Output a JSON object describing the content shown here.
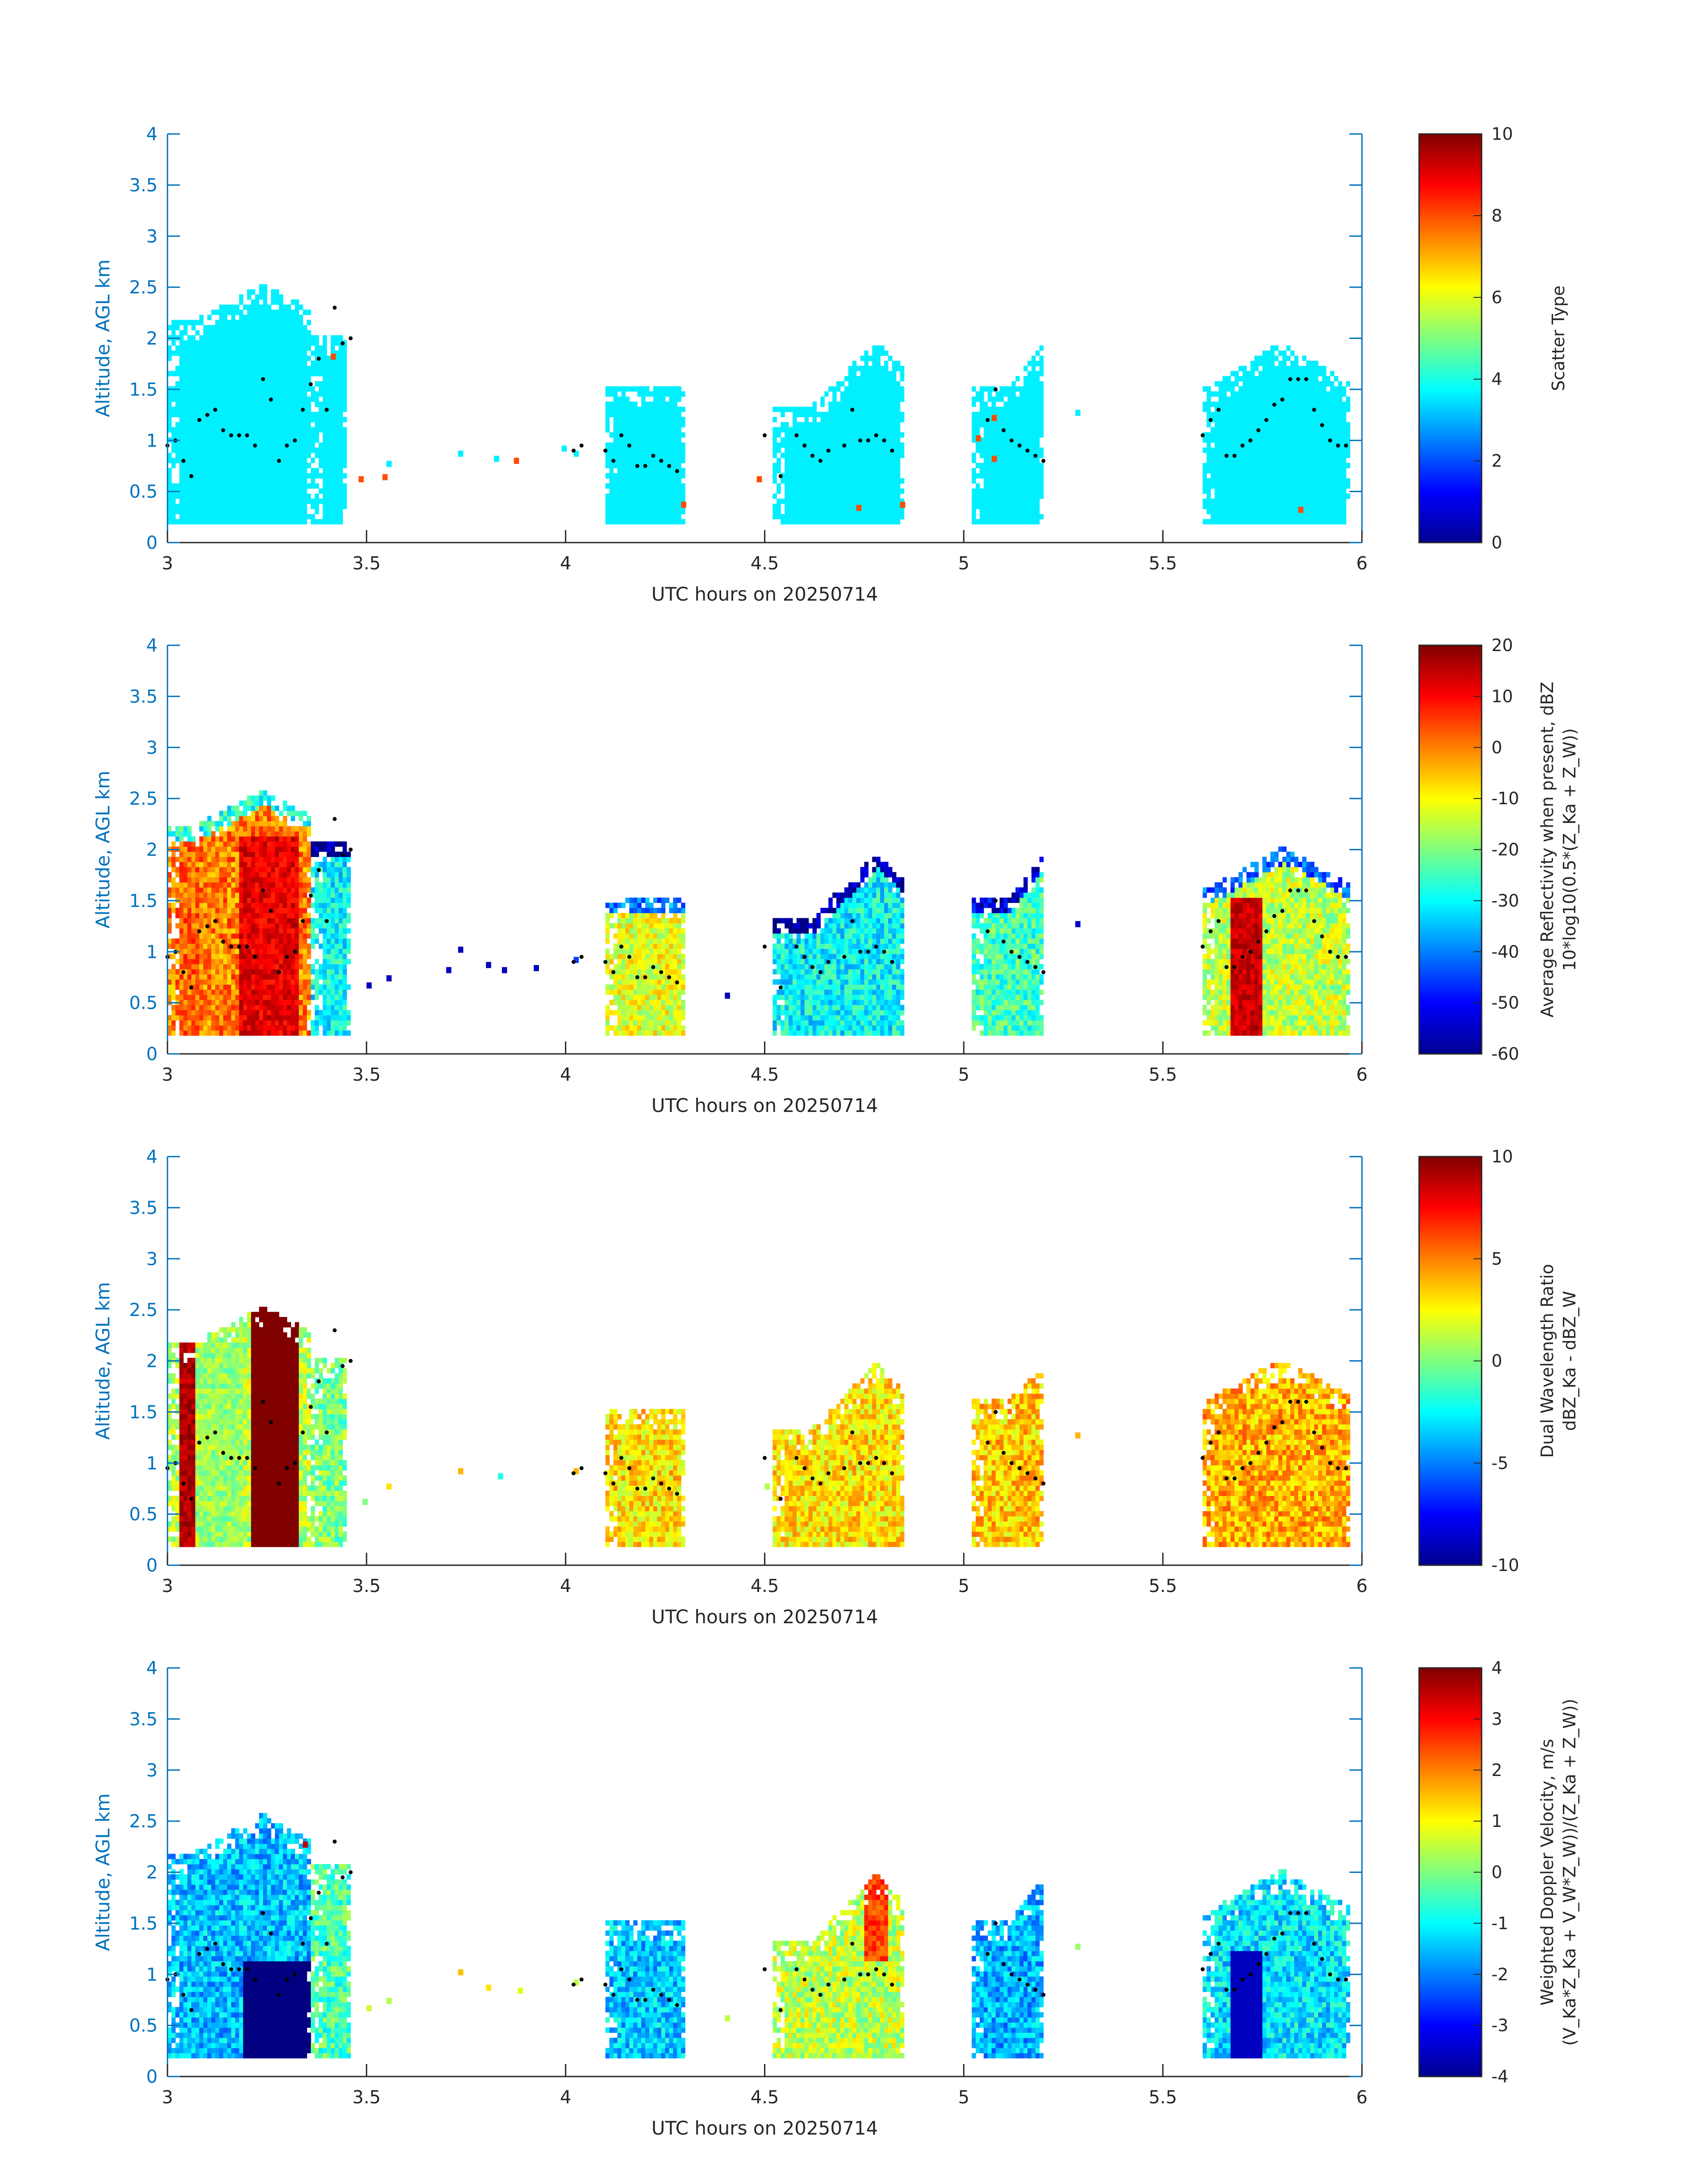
{
  "chart_data": [
    {
      "type": "heatmap",
      "title": "",
      "xlabel": "UTC hours on 20250714",
      "ylabel": "Altitude, AGL km",
      "xlim": [
        3,
        6
      ],
      "ylim": [
        0,
        4
      ],
      "xticks": [
        "3",
        "3.5",
        "4",
        "4.5",
        "5",
        "5.5",
        "6"
      ],
      "yticks": [
        "0",
        "0.5",
        "1",
        "1.5",
        "2",
        "2.5",
        "3",
        "3.5",
        "4"
      ],
      "colorbar": {
        "label_lines": [
          "Scatter Type"
        ],
        "range": [
          0,
          10
        ],
        "ticks": [
          "0",
          "2",
          "4",
          "6",
          "8",
          "10"
        ],
        "colormap": "jet"
      },
      "field": "scatter",
      "regions": [
        {
          "x0": 3.0,
          "x1": 3.36,
          "top": 2.15,
          "peak": 2.5,
          "peak_x": 3.24,
          "value": 3.6
        },
        {
          "x0": 3.36,
          "x1": 3.45,
          "top": 2.0,
          "peak": 2.0,
          "peak_x": 3.4,
          "value": 3.6
        },
        {
          "x0": 4.1,
          "x1": 4.3,
          "top": 1.5,
          "peak": 1.5,
          "peak_x": 4.2,
          "value": 3.6
        },
        {
          "x0": 4.52,
          "x1": 4.85,
          "top": 1.3,
          "peak": 1.95,
          "peak_x": 4.78,
          "value": 3.6
        },
        {
          "x0": 5.02,
          "x1": 5.2,
          "top": 1.5,
          "peak": 1.95,
          "peak_x": 5.2,
          "value": 3.6
        },
        {
          "x0": 5.6,
          "x1": 5.97,
          "top": 1.5,
          "peak": 1.95,
          "peak_x": 5.8,
          "value": 3.6
        }
      ],
      "specks": [
        {
          "x": 3.55,
          "y": 0.75,
          "value": 3.6
        },
        {
          "x": 3.73,
          "y": 0.85,
          "value": 3.6
        },
        {
          "x": 3.82,
          "y": 0.8,
          "value": 3.6
        },
        {
          "x": 3.99,
          "y": 0.9,
          "value": 3.6
        },
        {
          "x": 4.02,
          "y": 0.85,
          "value": 3.6
        },
        {
          "x": 5.28,
          "y": 1.25,
          "value": 3.6
        },
        {
          "x": 3.48,
          "y": 0.6,
          "value": 8.0
        },
        {
          "x": 3.54,
          "y": 0.62,
          "value": 8.0
        },
        {
          "x": 3.87,
          "y": 0.78,
          "value": 8.0
        },
        {
          "x": 4.29,
          "y": 0.35,
          "value": 8.0
        },
        {
          "x": 4.48,
          "y": 0.6,
          "value": 8.0
        },
        {
          "x": 4.73,
          "y": 0.32,
          "value": 8.0
        },
        {
          "x": 4.84,
          "y": 0.35,
          "value": 8.0
        },
        {
          "x": 5.03,
          "y": 1.0,
          "value": 8.0
        },
        {
          "x": 5.07,
          "y": 0.8,
          "value": 8.0
        },
        {
          "x": 5.07,
          "y": 1.2,
          "value": 8.0
        },
        {
          "x": 3.41,
          "y": 1.8,
          "value": 8.0
        },
        {
          "x": 5.84,
          "y": 0.3,
          "value": 8.0
        }
      ]
    },
    {
      "type": "heatmap",
      "title": "",
      "xlabel": "UTC hours on 20250714",
      "ylabel": "Altitude, AGL km",
      "xlim": [
        3,
        6
      ],
      "ylim": [
        0,
        4
      ],
      "xticks": [
        "3",
        "3.5",
        "4",
        "4.5",
        "5",
        "5.5",
        "6"
      ],
      "yticks": [
        "0",
        "0.5",
        "1",
        "1.5",
        "2",
        "2.5",
        "3",
        "3.5",
        "4"
      ],
      "colorbar": {
        "label_lines": [
          "Average Reflectivity when present, dBZ",
          "10*log10(0.5*(Z_Ka + Z_W))"
        ],
        "range": [
          -60,
          20
        ],
        "ticks": [
          "-60",
          "-50",
          "-40",
          "-30",
          "-20",
          "-10",
          "0",
          "10",
          "20"
        ],
        "colormap": "jet"
      },
      "field": "reflectivity",
      "regions": [
        {
          "x0": 3.0,
          "x1": 3.36,
          "top": 2.2,
          "peak": 2.55,
          "peak_x": 3.24,
          "value": 0
        },
        {
          "x0": 3.36,
          "x1": 3.46,
          "top": 2.05,
          "peak": 2.05,
          "peak_x": 3.4,
          "value": -30
        },
        {
          "x0": 4.1,
          "x1": 4.3,
          "top": 1.5,
          "peak": 1.5,
          "peak_x": 4.2,
          "value": -12
        },
        {
          "x0": 4.52,
          "x1": 4.85,
          "top": 1.3,
          "peak": 1.95,
          "peak_x": 4.78,
          "value": -30
        },
        {
          "x0": 5.02,
          "x1": 5.2,
          "top": 1.5,
          "peak": 1.95,
          "peak_x": 5.2,
          "value": -25
        },
        {
          "x0": 5.6,
          "x1": 5.97,
          "top": 1.6,
          "peak": 2.0,
          "peak_x": 5.8,
          "value": -15
        }
      ],
      "specks": [
        {
          "x": 3.5,
          "y": 0.65,
          "value": -55
        },
        {
          "x": 3.55,
          "y": 0.72,
          "value": -55
        },
        {
          "x": 3.7,
          "y": 0.8,
          "value": -55
        },
        {
          "x": 3.73,
          "y": 1.0,
          "value": -55
        },
        {
          "x": 3.8,
          "y": 0.85,
          "value": -55
        },
        {
          "x": 3.84,
          "y": 0.8,
          "value": -55
        },
        {
          "x": 3.92,
          "y": 0.82,
          "value": -55
        },
        {
          "x": 4.02,
          "y": 0.9,
          "value": -45
        },
        {
          "x": 4.4,
          "y": 0.55,
          "value": -55
        },
        {
          "x": 5.28,
          "y": 1.25,
          "value": -55
        }
      ]
    },
    {
      "type": "heatmap",
      "title": "",
      "xlabel": "UTC hours on 20250714",
      "ylabel": "Altitude, AGL km",
      "xlim": [
        3,
        6
      ],
      "ylim": [
        0,
        4
      ],
      "xticks": [
        "3",
        "3.5",
        "4",
        "4.5",
        "5",
        "5.5",
        "6"
      ],
      "yticks": [
        "0",
        "0.5",
        "1",
        "1.5",
        "2",
        "2.5",
        "3",
        "3.5",
        "4"
      ],
      "colorbar": {
        "label_lines": [
          "Dual Wavelength Ratio",
          "dBZ_Ka - dBZ_W"
        ],
        "range": [
          -10,
          10
        ],
        "ticks": [
          "-10",
          "-5",
          "0",
          "5",
          "10"
        ],
        "colormap": "jet"
      },
      "field": "dwr",
      "regions": [
        {
          "x0": 3.0,
          "x1": 3.36,
          "top": 2.15,
          "peak": 2.5,
          "peak_x": 3.24,
          "value": 1
        },
        {
          "x0": 3.36,
          "x1": 3.45,
          "top": 2.0,
          "peak": 2.0,
          "peak_x": 3.4,
          "value": 0
        },
        {
          "x0": 4.1,
          "x1": 4.3,
          "top": 1.5,
          "peak": 1.5,
          "peak_x": 4.2,
          "value": 3
        },
        {
          "x0": 4.52,
          "x1": 4.85,
          "top": 1.3,
          "peak": 1.95,
          "peak_x": 4.78,
          "value": 3
        },
        {
          "x0": 5.02,
          "x1": 5.2,
          "top": 1.6,
          "peak": 1.9,
          "peak_x": 5.2,
          "value": 3.5
        },
        {
          "x0": 5.6,
          "x1": 5.97,
          "top": 1.6,
          "peak": 2.0,
          "peak_x": 5.8,
          "value": 4
        }
      ],
      "specks": [
        {
          "x": 3.55,
          "y": 0.75,
          "value": 3
        },
        {
          "x": 3.49,
          "y": 0.6,
          "value": 0
        },
        {
          "x": 3.73,
          "y": 0.9,
          "value": 4
        },
        {
          "x": 3.83,
          "y": 0.85,
          "value": -2
        },
        {
          "x": 4.02,
          "y": 0.9,
          "value": 4
        },
        {
          "x": 4.5,
          "y": 0.75,
          "value": 1
        },
        {
          "x": 5.28,
          "y": 1.25,
          "value": 4
        }
      ]
    },
    {
      "type": "heatmap",
      "title": "",
      "xlabel": "UTC hours on 20250714",
      "ylabel": "Altitude, AGL km",
      "xlim": [
        3,
        6
      ],
      "ylim": [
        0,
        4
      ],
      "xticks": [
        "3",
        "3.5",
        "4",
        "4.5",
        "5",
        "5.5",
        "6"
      ],
      "yticks": [
        "0",
        "0.5",
        "1",
        "1.5",
        "2",
        "2.5",
        "3",
        "3.5",
        "4"
      ],
      "colorbar": {
        "label_lines": [
          "Weighted Doppler Velocity, m/s",
          "(V_Ka*Z_Ka + V_W*Z_W))/(Z_Ka + Z_W))"
        ],
        "range": [
          -4,
          4
        ],
        "ticks": [
          "-4",
          "-3",
          "-2",
          "-1",
          "0",
          "1",
          "2",
          "3",
          "4"
        ],
        "colormap": "jet"
      },
      "field": "velocity",
      "regions": [
        {
          "x0": 3.0,
          "x1": 3.36,
          "top": 2.15,
          "peak": 2.55,
          "peak_x": 3.24,
          "value": -1.5
        },
        {
          "x0": 3.36,
          "x1": 3.46,
          "top": 2.05,
          "peak": 2.05,
          "peak_x": 3.4,
          "value": -0.4
        },
        {
          "x0": 4.1,
          "x1": 4.3,
          "top": 1.5,
          "peak": 1.5,
          "peak_x": 4.2,
          "value": -1.4
        },
        {
          "x0": 4.52,
          "x1": 4.85,
          "top": 1.3,
          "peak": 1.95,
          "peak_x": 4.78,
          "value": 0.5
        },
        {
          "x0": 5.02,
          "x1": 5.2,
          "top": 1.5,
          "peak": 1.95,
          "peak_x": 5.2,
          "value": -1.6
        },
        {
          "x0": 5.6,
          "x1": 5.97,
          "top": 1.6,
          "peak": 2.0,
          "peak_x": 5.8,
          "value": -1.2
        }
      ],
      "specks": [
        {
          "x": 3.5,
          "y": 0.65,
          "value": 0.6
        },
        {
          "x": 3.55,
          "y": 0.72,
          "value": 0.4
        },
        {
          "x": 3.73,
          "y": 1.0,
          "value": 1.5
        },
        {
          "x": 3.8,
          "y": 0.85,
          "value": 1.2
        },
        {
          "x": 3.88,
          "y": 0.82,
          "value": 0.8
        },
        {
          "x": 4.02,
          "y": 0.9,
          "value": 0.5
        },
        {
          "x": 4.4,
          "y": 0.55,
          "value": 0.5
        },
        {
          "x": 5.28,
          "y": 1.25,
          "value": 0.2
        },
        {
          "x": 3.34,
          "y": 2.25,
          "value": 3.5
        }
      ]
    }
  ],
  "overlay": {
    "description_color": "#000000",
    "points_x": [
      3.0,
      3.02,
      3.04,
      3.06,
      3.08,
      3.1,
      3.12,
      3.14,
      3.16,
      3.18,
      3.2,
      3.22,
      3.24,
      3.26,
      3.28,
      3.3,
      3.32,
      3.34,
      3.36,
      3.38,
      3.4,
      3.42,
      3.44,
      3.46,
      4.02,
      4.04,
      4.1,
      4.12,
      4.14,
      4.16,
      4.18,
      4.2,
      4.22,
      4.24,
      4.26,
      4.28,
      4.5,
      4.54,
      4.58,
      4.6,
      4.62,
      4.64,
      4.66,
      4.7,
      4.72,
      4.74,
      4.76,
      4.78,
      4.8,
      4.82,
      5.06,
      5.08,
      5.1,
      5.12,
      5.14,
      5.16,
      5.18,
      5.2,
      5.6,
      5.62,
      5.64,
      5.66,
      5.68,
      5.7,
      5.72,
      5.74,
      5.76,
      5.78,
      5.8,
      5.82,
      5.84,
      5.86,
      5.88,
      5.9,
      5.92,
      5.94,
      5.96
    ],
    "points_y": [
      0.95,
      1.0,
      0.8,
      0.65,
      1.2,
      1.25,
      1.3,
      1.1,
      1.05,
      1.05,
      1.05,
      0.95,
      1.6,
      1.4,
      0.8,
      0.95,
      1.0,
      1.3,
      1.55,
      1.8,
      1.3,
      2.3,
      1.95,
      2.0,
      0.9,
      0.95,
      0.9,
      0.8,
      1.05,
      0.95,
      0.75,
      0.75,
      0.85,
      0.8,
      0.75,
      0.7,
      1.05,
      0.65,
      1.05,
      0.95,
      0.85,
      0.8,
      0.9,
      0.95,
      1.3,
      1.0,
      1.0,
      1.05,
      1.0,
      0.9,
      1.2,
      1.5,
      1.1,
      1.0,
      0.95,
      0.9,
      0.85,
      0.8,
      1.05,
      1.2,
      1.3,
      0.85,
      0.85,
      0.95,
      1.0,
      1.1,
      1.2,
      1.35,
      1.4,
      1.6,
      1.6,
      1.6,
      1.3,
      1.15,
      1.0,
      0.95,
      0.95
    ]
  }
}
